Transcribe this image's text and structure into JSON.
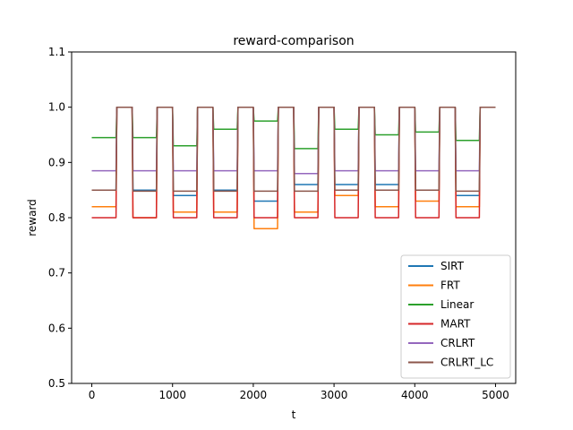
{
  "chart_data": {
    "type": "line",
    "title": "reward-comparison",
    "xlabel": "t",
    "ylabel": "reward",
    "xlim": [
      -250,
      5250
    ],
    "ylim": [
      0.5,
      1.1
    ],
    "xticks": [
      0,
      1000,
      2000,
      3000,
      4000,
      5000
    ],
    "yticks": [
      0.5,
      0.6,
      0.7,
      0.8,
      0.9,
      1.0,
      1.1
    ],
    "xtick_labels": [
      "0",
      "1000",
      "2000",
      "3000",
      "4000",
      "5000"
    ],
    "ytick_labels": [
      "0.5",
      "0.6",
      "0.7",
      "0.8",
      "0.9",
      "1.0",
      "1.1"
    ],
    "legend_position": "lower-right",
    "grid": false,
    "series": [
      {
        "name": "SIRT",
        "color": "#1f77b4",
        "x": [
          0,
          300,
          310,
          500,
          510,
          800,
          810,
          1000,
          1010,
          1300,
          1310,
          1500,
          1510,
          1800,
          1810,
          2000,
          2010,
          2300,
          2310,
          2500,
          2510,
          2800,
          2810,
          3000,
          3010,
          3300,
          3310,
          3500,
          3510,
          3800,
          3810,
          4000,
          4010,
          4300,
          4310,
          4500,
          4510,
          4800,
          4810,
          5000
        ],
        "values": [
          0.85,
          0.85,
          1.0,
          1.0,
          0.85,
          0.85,
          1.0,
          1.0,
          0.84,
          0.84,
          1.0,
          1.0,
          0.85,
          0.85,
          1.0,
          1.0,
          0.83,
          0.83,
          1.0,
          1.0,
          0.86,
          0.86,
          1.0,
          1.0,
          0.86,
          0.86,
          1.0,
          1.0,
          0.86,
          0.86,
          1.0,
          1.0,
          0.85,
          0.85,
          1.0,
          1.0,
          0.84,
          0.84,
          1.0,
          1.0
        ]
      },
      {
        "name": "FRT",
        "color": "#ff7f0e",
        "x": [
          0,
          300,
          310,
          500,
          510,
          800,
          810,
          1000,
          1010,
          1300,
          1310,
          1500,
          1510,
          1800,
          1810,
          2000,
          2010,
          2300,
          2310,
          2500,
          2510,
          2800,
          2810,
          3000,
          3010,
          3300,
          3310,
          3500,
          3510,
          3800,
          3810,
          4000,
          4010,
          4300,
          4310,
          4500,
          4510,
          4800,
          4810,
          5000
        ],
        "values": [
          0.82,
          0.82,
          1.0,
          1.0,
          0.8,
          0.8,
          1.0,
          1.0,
          0.81,
          0.81,
          1.0,
          1.0,
          0.81,
          0.81,
          1.0,
          1.0,
          0.78,
          0.78,
          1.0,
          1.0,
          0.81,
          0.81,
          1.0,
          1.0,
          0.84,
          0.84,
          1.0,
          1.0,
          0.82,
          0.82,
          1.0,
          1.0,
          0.83,
          0.83,
          1.0,
          1.0,
          0.82,
          0.82,
          1.0,
          1.0
        ]
      },
      {
        "name": "Linear",
        "color": "#2ca02c",
        "x": [
          0,
          300,
          310,
          500,
          510,
          800,
          810,
          1000,
          1010,
          1300,
          1310,
          1500,
          1510,
          1800,
          1810,
          2000,
          2010,
          2300,
          2310,
          2500,
          2510,
          2800,
          2810,
          3000,
          3010,
          3300,
          3310,
          3500,
          3510,
          3800,
          3810,
          4000,
          4010,
          4300,
          4310,
          4500,
          4510,
          4800,
          4810,
          5000
        ],
        "values": [
          0.945,
          0.945,
          1.0,
          1.0,
          0.945,
          0.945,
          1.0,
          1.0,
          0.93,
          0.93,
          1.0,
          1.0,
          0.96,
          0.96,
          1.0,
          1.0,
          0.975,
          0.975,
          1.0,
          1.0,
          0.925,
          0.925,
          1.0,
          1.0,
          0.96,
          0.96,
          1.0,
          1.0,
          0.95,
          0.95,
          1.0,
          1.0,
          0.955,
          0.955,
          1.0,
          1.0,
          0.94,
          0.94,
          1.0,
          1.0
        ]
      },
      {
        "name": "MART",
        "color": "#d62728",
        "x": [
          0,
          300,
          310,
          500,
          510,
          800,
          810,
          1000,
          1010,
          1300,
          1310,
          1500,
          1510,
          1800,
          1810,
          2000,
          2010,
          2300,
          2310,
          2500,
          2510,
          2800,
          2810,
          3000,
          3010,
          3300,
          3310,
          3500,
          3510,
          3800,
          3810,
          4000,
          4010,
          4300,
          4310,
          4500,
          4510,
          4800,
          4810,
          5000
        ],
        "values": [
          0.8,
          0.8,
          1.0,
          1.0,
          0.8,
          0.8,
          1.0,
          1.0,
          0.8,
          0.8,
          1.0,
          1.0,
          0.8,
          0.8,
          1.0,
          1.0,
          0.8,
          0.8,
          1.0,
          1.0,
          0.8,
          0.8,
          1.0,
          1.0,
          0.8,
          0.8,
          1.0,
          1.0,
          0.8,
          0.8,
          1.0,
          1.0,
          0.8,
          0.8,
          1.0,
          1.0,
          0.8,
          0.8,
          1.0,
          1.0
        ]
      },
      {
        "name": "CRLRT",
        "color": "#9467bd",
        "x": [
          0,
          300,
          310,
          500,
          510,
          800,
          810,
          1000,
          1010,
          1300,
          1310,
          1500,
          1510,
          1800,
          1810,
          2000,
          2010,
          2300,
          2310,
          2500,
          2510,
          2800,
          2810,
          3000,
          3010,
          3300,
          3310,
          3500,
          3510,
          3800,
          3810,
          4000,
          4010,
          4300,
          4310,
          4500,
          4510,
          4800,
          4810,
          5000
        ],
        "values": [
          0.885,
          0.885,
          1.0,
          1.0,
          0.885,
          0.885,
          1.0,
          1.0,
          0.885,
          0.885,
          1.0,
          1.0,
          0.885,
          0.885,
          1.0,
          1.0,
          0.885,
          0.885,
          1.0,
          1.0,
          0.88,
          0.88,
          1.0,
          1.0,
          0.885,
          0.885,
          1.0,
          1.0,
          0.885,
          0.885,
          1.0,
          1.0,
          0.885,
          0.885,
          1.0,
          1.0,
          0.885,
          0.885,
          1.0,
          1.0
        ]
      },
      {
        "name": "CRLRT_LC",
        "color": "#8c564b",
        "x": [
          0,
          300,
          310,
          500,
          510,
          800,
          810,
          1000,
          1010,
          1300,
          1310,
          1500,
          1510,
          1800,
          1810,
          2000,
          2010,
          2300,
          2310,
          2500,
          2510,
          2800,
          2810,
          3000,
          3010,
          3300,
          3310,
          3500,
          3510,
          3800,
          3810,
          4000,
          4010,
          4300,
          4310,
          4500,
          4510,
          4800,
          4810,
          5000
        ],
        "values": [
          0.85,
          0.85,
          1.0,
          1.0,
          0.848,
          0.848,
          1.0,
          1.0,
          0.848,
          0.848,
          1.0,
          1.0,
          0.848,
          0.848,
          1.0,
          1.0,
          0.848,
          0.848,
          1.0,
          1.0,
          0.848,
          0.848,
          1.0,
          1.0,
          0.85,
          0.85,
          1.0,
          1.0,
          0.85,
          0.85,
          1.0,
          1.0,
          0.85,
          0.85,
          1.0,
          1.0,
          0.848,
          0.848,
          1.0,
          1.0
        ]
      }
    ]
  }
}
